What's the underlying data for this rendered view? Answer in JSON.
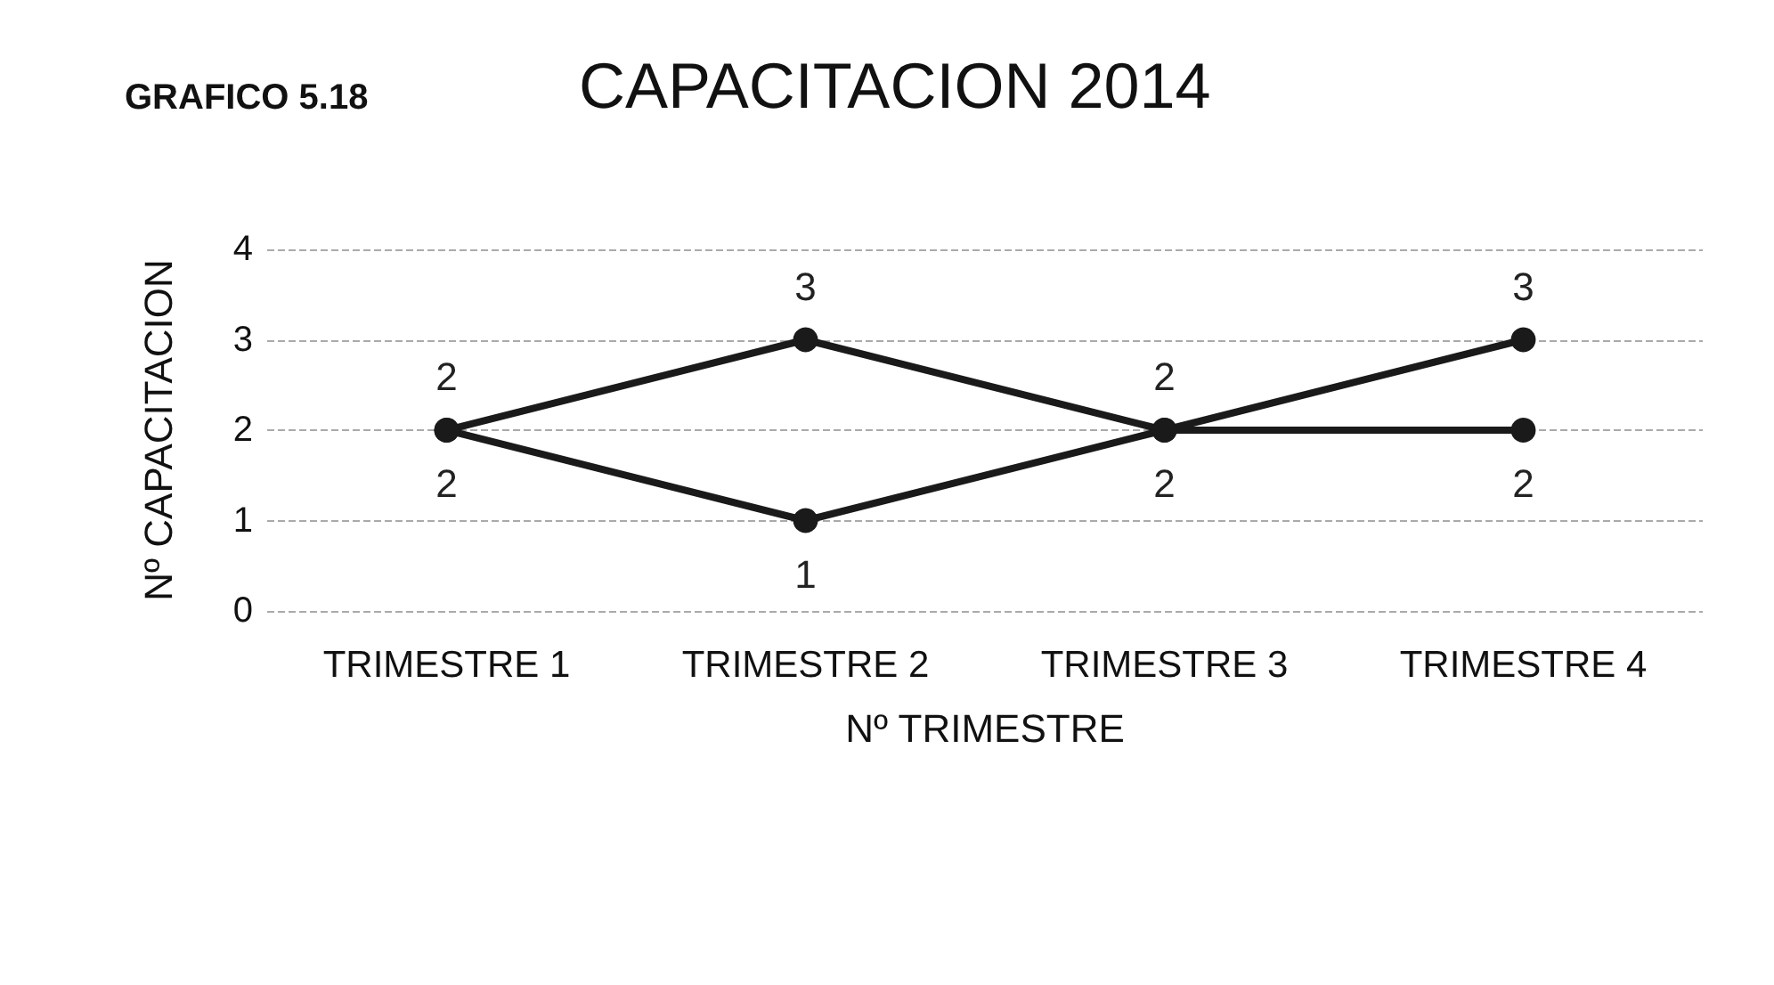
{
  "chart_data": {
    "type": "line",
    "title": "CAPACITACION 2014",
    "annotations": [
      "GRAFICO 5.18"
    ],
    "xlabel": "Nº TRIMESTRE",
    "ylabel": "Nº CAPACITACION",
    "categories": [
      "TRIMESTRE 1",
      "TRIMESTRE 2",
      "TRIMESTRE 3",
      "TRIMESTRE 4"
    ],
    "series": [
      {
        "color": "#1a1a1a",
        "values": [
          2,
          3,
          2,
          3
        ]
      },
      {
        "color": "#1a1a1a",
        "values": [
          2,
          1,
          2,
          2
        ]
      }
    ],
    "ylim": [
      0,
      4
    ],
    "yticks": [
      0,
      1,
      2,
      3,
      4
    ],
    "grid": "y",
    "marker": "circle",
    "line_style": "solid",
    "data_labels": true
  }
}
